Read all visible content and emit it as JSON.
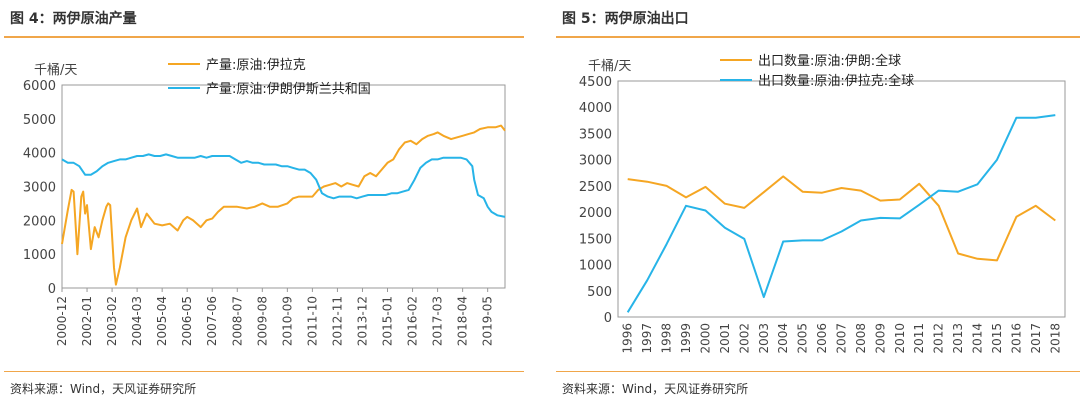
{
  "panels": [
    {
      "title": "图 4：两伊原油产量",
      "source": "资料来源：Wind，天风证券研究所"
    },
    {
      "title": "图 5：两伊原油出口",
      "source": "资料来源：Wind，天风证券研究所"
    }
  ],
  "chart_data": [
    {
      "type": "line",
      "ylabel": "千桶/天",
      "ylim": [
        0,
        6000
      ],
      "yticks": [
        0,
        1000,
        2000,
        3000,
        4000,
        5000,
        6000
      ],
      "x_range": [
        "2000-12",
        "2020-02"
      ],
      "x_ticks": [
        "2000-12",
        "2002-01",
        "2003-02",
        "2004-03",
        "2005-04",
        "2006-05",
        "2007-06",
        "2008-07",
        "2009-08",
        "2010-09",
        "2011-10",
        "2012-11",
        "2013-12",
        "2015-01",
        "2016-02",
        "2017-03",
        "2018-04",
        "2019-05"
      ],
      "legend_position": "top",
      "series": [
        {
          "name": "产量:原油:伊拉克",
          "color": "#f5a623",
          "points": [
            [
              "2000-12",
              1300
            ],
            [
              "2001-03",
              2300
            ],
            [
              "2001-05",
              2900
            ],
            [
              "2001-06",
              2850
            ],
            [
              "2001-08",
              1000
            ],
            [
              "2001-10",
              2700
            ],
            [
              "2001-11",
              2850
            ],
            [
              "2001-12",
              2200
            ],
            [
              "2002-01",
              2450
            ],
            [
              "2002-03",
              1150
            ],
            [
              "2002-05",
              1800
            ],
            [
              "2002-07",
              1500
            ],
            [
              "2002-09",
              2000
            ],
            [
              "2002-11",
              2400
            ],
            [
              "2002-12",
              2500
            ],
            [
              "2003-01",
              2450
            ],
            [
              "2003-03",
              600
            ],
            [
              "2003-04",
              100
            ],
            [
              "2003-06",
              600
            ],
            [
              "2003-09",
              1500
            ],
            [
              "2003-12",
              2000
            ],
            [
              "2004-03",
              2350
            ],
            [
              "2004-05",
              1800
            ],
            [
              "2004-08",
              2200
            ],
            [
              "2004-12",
              1900
            ],
            [
              "2005-04",
              1850
            ],
            [
              "2005-08",
              1900
            ],
            [
              "2005-12",
              1700
            ],
            [
              "2006-03",
              2000
            ],
            [
              "2006-05",
              2100
            ],
            [
              "2006-08",
              2000
            ],
            [
              "2006-12",
              1800
            ],
            [
              "2007-03",
              2000
            ],
            [
              "2007-06",
              2050
            ],
            [
              "2007-09",
              2250
            ],
            [
              "2007-12",
              2400
            ],
            [
              "2008-04",
              2400
            ],
            [
              "2008-07",
              2400
            ],
            [
              "2008-12",
              2350
            ],
            [
              "2009-04",
              2400
            ],
            [
              "2009-08",
              2500
            ],
            [
              "2009-12",
              2400
            ],
            [
              "2010-04",
              2400
            ],
            [
              "2010-09",
              2500
            ],
            [
              "2010-12",
              2650
            ],
            [
              "2011-03",
              2700
            ],
            [
              "2011-07",
              2700
            ],
            [
              "2011-10",
              2700
            ],
            [
              "2012-01",
              2900
            ],
            [
              "2012-04",
              3000
            ],
            [
              "2012-07",
              3050
            ],
            [
              "2012-10",
              3100
            ],
            [
              "2013-01",
              3000
            ],
            [
              "2013-04",
              3100
            ],
            [
              "2013-07",
              3050
            ],
            [
              "2013-10",
              3000
            ],
            [
              "2014-01",
              3300
            ],
            [
              "2014-04",
              3400
            ],
            [
              "2014-07",
              3300
            ],
            [
              "2014-10",
              3500
            ],
            [
              "2015-01",
              3700
            ],
            [
              "2015-04",
              3800
            ],
            [
              "2015-07",
              4100
            ],
            [
              "2015-10",
              4300
            ],
            [
              "2016-01",
              4350
            ],
            [
              "2016-04",
              4250
            ],
            [
              "2016-07",
              4400
            ],
            [
              "2016-10",
              4500
            ],
            [
              "2017-01",
              4550
            ],
            [
              "2017-03",
              4600
            ],
            [
              "2017-06",
              4500
            ],
            [
              "2017-10",
              4400
            ],
            [
              "2018-01",
              4450
            ],
            [
              "2018-04",
              4500
            ],
            [
              "2018-07",
              4550
            ],
            [
              "2018-10",
              4600
            ],
            [
              "2019-01",
              4700
            ],
            [
              "2019-05",
              4750
            ],
            [
              "2019-09",
              4750
            ],
            [
              "2019-12",
              4800
            ],
            [
              "2020-02",
              4650
            ]
          ]
        },
        {
          "name": "产量:原油:伊朗伊斯兰共和国",
          "color": "#27b4e8",
          "points": [
            [
              "2000-12",
              3800
            ],
            [
              "2001-03",
              3700
            ],
            [
              "2001-06",
              3700
            ],
            [
              "2001-09",
              3600
            ],
            [
              "2001-12",
              3350
            ],
            [
              "2002-03",
              3350
            ],
            [
              "2002-06",
              3450
            ],
            [
              "2002-09",
              3600
            ],
            [
              "2002-12",
              3700
            ],
            [
              "2003-03",
              3750
            ],
            [
              "2003-06",
              3800
            ],
            [
              "2003-09",
              3800
            ],
            [
              "2003-12",
              3850
            ],
            [
              "2004-03",
              3900
            ],
            [
              "2004-06",
              3900
            ],
            [
              "2004-09",
              3950
            ],
            [
              "2004-12",
              3900
            ],
            [
              "2005-03",
              3900
            ],
            [
              "2005-06",
              3950
            ],
            [
              "2005-09",
              3900
            ],
            [
              "2005-12",
              3850
            ],
            [
              "2006-03",
              3850
            ],
            [
              "2006-06",
              3850
            ],
            [
              "2006-09",
              3850
            ],
            [
              "2006-12",
              3900
            ],
            [
              "2007-03",
              3850
            ],
            [
              "2007-06",
              3900
            ],
            [
              "2007-09",
              3900
            ],
            [
              "2007-12",
              3900
            ],
            [
              "2008-03",
              3900
            ],
            [
              "2008-06",
              3800
            ],
            [
              "2008-09",
              3700
            ],
            [
              "2008-12",
              3750
            ],
            [
              "2009-03",
              3700
            ],
            [
              "2009-06",
              3700
            ],
            [
              "2009-09",
              3650
            ],
            [
              "2009-12",
              3650
            ],
            [
              "2010-03",
              3650
            ],
            [
              "2010-06",
              3600
            ],
            [
              "2010-09",
              3600
            ],
            [
              "2010-12",
              3550
            ],
            [
              "2011-03",
              3500
            ],
            [
              "2011-06",
              3500
            ],
            [
              "2011-09",
              3400
            ],
            [
              "2011-12",
              3200
            ],
            [
              "2012-03",
              2800
            ],
            [
              "2012-06",
              2700
            ],
            [
              "2012-09",
              2650
            ],
            [
              "2012-12",
              2700
            ],
            [
              "2013-03",
              2700
            ],
            [
              "2013-06",
              2700
            ],
            [
              "2013-09",
              2650
            ],
            [
              "2013-12",
              2700
            ],
            [
              "2014-03",
              2750
            ],
            [
              "2014-06",
              2750
            ],
            [
              "2014-09",
              2750
            ],
            [
              "2014-12",
              2750
            ],
            [
              "2015-03",
              2800
            ],
            [
              "2015-06",
              2800
            ],
            [
              "2015-09",
              2850
            ],
            [
              "2015-12",
              2900
            ],
            [
              "2016-03",
              3200
            ],
            [
              "2016-06",
              3550
            ],
            [
              "2016-09",
              3700
            ],
            [
              "2016-12",
              3800
            ],
            [
              "2017-03",
              3800
            ],
            [
              "2017-06",
              3850
            ],
            [
              "2017-09",
              3850
            ],
            [
              "2017-12",
              3850
            ],
            [
              "2018-03",
              3850
            ],
            [
              "2018-06",
              3800
            ],
            [
              "2018-09",
              3600
            ],
            [
              "2018-10",
              3200
            ],
            [
              "2018-12",
              2750
            ],
            [
              "2019-03",
              2650
            ],
            [
              "2019-05",
              2400
            ],
            [
              "2019-07",
              2250
            ],
            [
              "2019-10",
              2150
            ],
            [
              "2020-02",
              2100
            ]
          ]
        }
      ]
    },
    {
      "type": "line",
      "ylabel": "千桶/天",
      "ylim": [
        0,
        4500
      ],
      "yticks": [
        0,
        500,
        1000,
        1500,
        2000,
        2500,
        3000,
        3500,
        4000,
        4500
      ],
      "categories": [
        "1996",
        "1997",
        "1998",
        "1999",
        "2000",
        "2001",
        "2002",
        "2003",
        "2004",
        "2005",
        "2006",
        "2007",
        "2008",
        "2009",
        "2010",
        "2011",
        "2012",
        "2013",
        "2014",
        "2015",
        "2016",
        "2017",
        "2018"
      ],
      "legend_position": "top",
      "series": [
        {
          "name": "出口数量:原油:伊朗:全球",
          "color": "#f5a623",
          "values": [
            2630,
            2580,
            2500,
            2280,
            2480,
            2160,
            2080,
            2380,
            2680,
            2390,
            2370,
            2460,
            2410,
            2220,
            2240,
            2540,
            2120,
            1210,
            1110,
            1080,
            1910,
            2120,
            1840
          ]
        },
        {
          "name": "出口数量:原油:伊拉克:全球",
          "color": "#27b4e8",
          "values": [
            90,
            700,
            1390,
            2120,
            2030,
            1700,
            1490,
            380,
            1440,
            1460,
            1460,
            1630,
            1840,
            1890,
            1880,
            2140,
            2410,
            2390,
            2530,
            3000,
            3800,
            3800,
            3850
          ]
        }
      ]
    }
  ]
}
